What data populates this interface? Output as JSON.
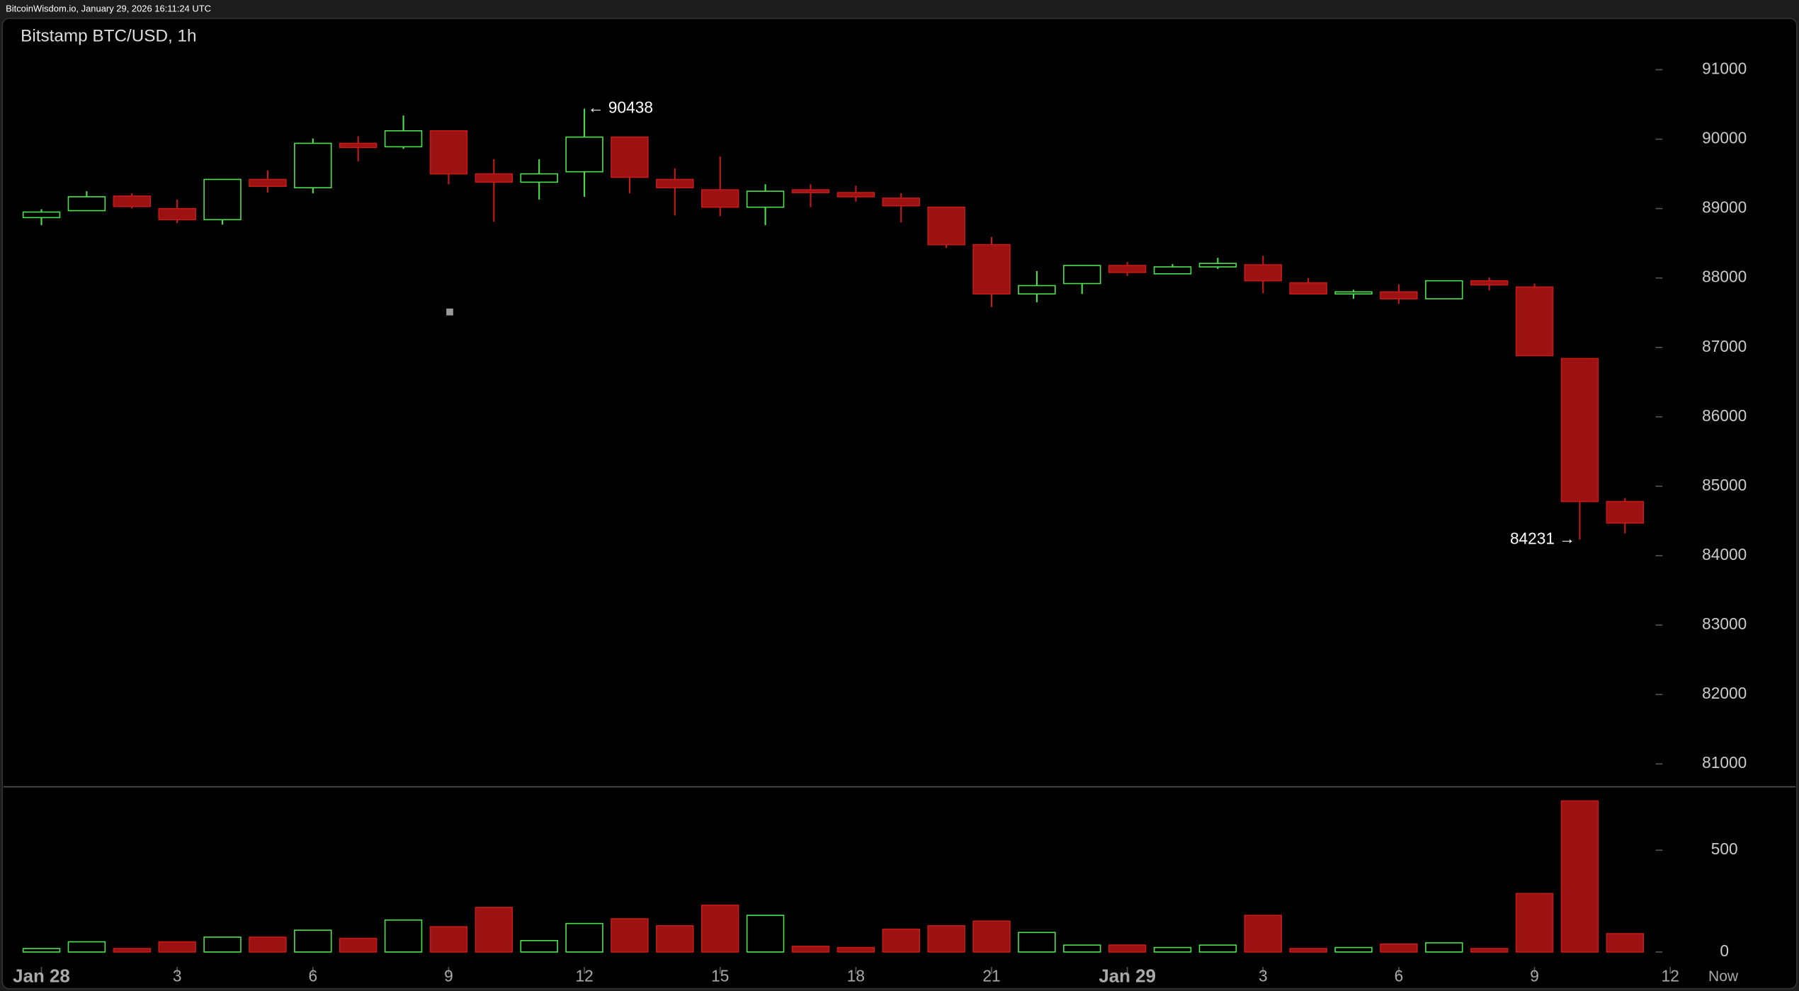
{
  "header": "BitcoinWisdom.io, January 29, 2026 16:11:24 UTC",
  "chart_data": [
    {
      "type": "candlestick",
      "title": "Bitstamp BTC/USD, 1h",
      "x": [
        0,
        1,
        2,
        3,
        4,
        5,
        6,
        7,
        8,
        9,
        10,
        11,
        12,
        13,
        14,
        15,
        16,
        17,
        18,
        19,
        20,
        21,
        22,
        23,
        24,
        25,
        26,
        27,
        28,
        29,
        30,
        31,
        32,
        33,
        34,
        35
      ],
      "open": [
        88870,
        88970,
        89180,
        89000,
        88840,
        89420,
        89300,
        89940,
        89890,
        90120,
        89500,
        89380,
        89530,
        90030,
        89420,
        89270,
        89020,
        89270,
        89230,
        89150,
        89020,
        88480,
        87770,
        87920,
        88180,
        88060,
        88160,
        88190,
        87930,
        87770,
        87800,
        87700,
        87960,
        87870,
        86840,
        84780
      ],
      "high": [
        88990,
        89250,
        89220,
        89130,
        89420,
        89550,
        90010,
        90040,
        90340,
        90120,
        89710,
        89710,
        90438,
        90030,
        89580,
        89750,
        89350,
        89350,
        89330,
        89220,
        89020,
        88590,
        88100,
        88180,
        88230,
        88200,
        88290,
        88320,
        88000,
        87830,
        87910,
        87960,
        88010,
        87920,
        86840,
        84830
      ],
      "low": [
        88760,
        88970,
        89000,
        88790,
        88770,
        89230,
        89220,
        89680,
        89860,
        89350,
        88810,
        89130,
        89170,
        89220,
        88900,
        88890,
        88760,
        89020,
        89100,
        88800,
        88430,
        87580,
        87650,
        87770,
        88030,
        88060,
        88130,
        87780,
        87770,
        87700,
        87630,
        87700,
        87820,
        86880,
        84231,
        84320
      ],
      "close": [
        88950,
        89170,
        89030,
        88840,
        89420,
        89320,
        89940,
        89880,
        90120,
        89500,
        89380,
        89500,
        90030,
        89450,
        89300,
        89020,
        89250,
        89230,
        89170,
        89040,
        88480,
        87770,
        87890,
        88180,
        88080,
        88160,
        88210,
        87960,
        87770,
        87800,
        87700,
        87960,
        87900,
        86880,
        84780,
        84470
      ],
      "up_color": "#4ce04c",
      "down_color": "#9c1111",
      "high_label": "← 90438",
      "low_label": "84231 →",
      "xlim": [
        -0.84,
        35.6
      ],
      "ylim": [
        80670,
        91740
      ],
      "yticks": [
        81000,
        82000,
        83000,
        84000,
        85000,
        86000,
        87000,
        88000,
        89000,
        90000,
        91000
      ]
    },
    {
      "type": "bar",
      "values": [
        17,
        50,
        17,
        50,
        73,
        73,
        107,
        67,
        157,
        124,
        219,
        56,
        140,
        163,
        129,
        230,
        180,
        28,
        22,
        112,
        129,
        152,
        96,
        34,
        34,
        22,
        34,
        180,
        17,
        22,
        39,
        45,
        17,
        287,
        742,
        90
      ],
      "ylim": [
        0,
        800
      ],
      "yticks": [
        0,
        500
      ],
      "xticks": [
        {
          "value": 0,
          "label": "Jan 28"
        },
        3,
        6,
        9,
        12,
        15,
        18,
        21,
        {
          "value": 24,
          "label": "Jan 29"
        },
        {
          "value": 27,
          "label": "3"
        },
        {
          "value": 30,
          "label": "6"
        },
        {
          "value": 33,
          "label": "9"
        },
        {
          "value": 36,
          "label": "12"
        }
      ],
      "x_end_label": "Now"
    }
  ]
}
